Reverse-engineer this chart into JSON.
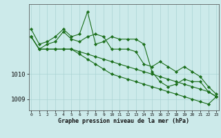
{
  "x": [
    0,
    1,
    2,
    3,
    4,
    5,
    6,
    7,
    8,
    9,
    10,
    11,
    12,
    13,
    14,
    15,
    16,
    17,
    18,
    19,
    20,
    21,
    22,
    23
  ],
  "series": [
    [
      1011.8,
      1011.2,
      1011.3,
      1011.5,
      1011.8,
      1011.5,
      1011.6,
      1012.5,
      1011.2,
      1011.3,
      1011.5,
      1011.4,
      1011.4,
      1011.4,
      1011.2,
      1010.1,
      1009.7,
      1009.5,
      1009.6,
      1009.8,
      1009.7,
      1009.7,
      1009.3,
      1009.1
    ],
    [
      1011.5,
      1011.0,
      1011.2,
      1011.3,
      1011.7,
      1011.4,
      1011.3,
      1011.5,
      1011.6,
      1011.5,
      1011.0,
      1011.0,
      1011.0,
      1010.9,
      1010.4,
      1010.3,
      1010.5,
      1010.3,
      1010.1,
      1010.3,
      1010.1,
      1009.9,
      1009.5,
      1009.2
    ],
    [
      1011.5,
      1011.0,
      1011.0,
      1011.0,
      1011.0,
      1011.0,
      1010.9,
      1010.8,
      1010.7,
      1010.6,
      1010.5,
      1010.4,
      1010.3,
      1010.2,
      1010.1,
      1010.0,
      1009.9,
      1009.8,
      1009.7,
      1009.6,
      1009.5,
      1009.4,
      1009.3,
      1009.1
    ],
    [
      1011.5,
      1011.0,
      1011.0,
      1011.0,
      1011.0,
      1011.0,
      1010.8,
      1010.6,
      1010.4,
      1010.2,
      1010.0,
      1009.9,
      1009.8,
      1009.7,
      1009.6,
      1009.5,
      1009.4,
      1009.3,
      1009.2,
      1009.1,
      1009.0,
      1008.9,
      1008.8,
      1009.1
    ]
  ],
  "line_color": "#1a6e1a",
  "marker_color": "#1a6e1a",
  "bg_color": "#cceaea",
  "grid_color": "#aad4d4",
  "xlabel": "Graphe pression niveau de la mer (hPa)",
  "yticks": [
    1009,
    1010
  ],
  "ylim": [
    1008.55,
    1012.8
  ],
  "xlim": [
    -0.3,
    23.3
  ]
}
